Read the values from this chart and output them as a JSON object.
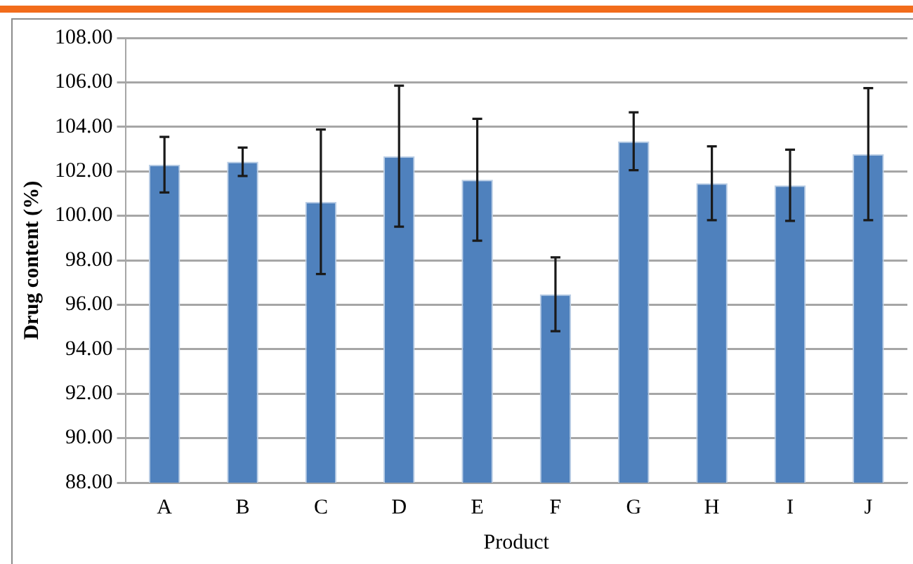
{
  "chart_data": {
    "type": "bar",
    "xlabel": "Product",
    "ylabel": "Drug content (%)",
    "categories": [
      "A",
      "B",
      "C",
      "D",
      "E",
      "F",
      "G",
      "H",
      "I",
      "J"
    ],
    "values": [
      102.3,
      102.43,
      100.63,
      102.68,
      101.62,
      96.47,
      103.35,
      101.46,
      101.37,
      102.77
    ],
    "errors": [
      1.25,
      0.64,
      3.25,
      3.17,
      2.74,
      1.66,
      1.3,
      1.66,
      1.6,
      2.97
    ],
    "color": "#4f81bd",
    "ylim": [
      88,
      108
    ],
    "yticks": [
      {
        "value": 88,
        "label": "88.00"
      },
      {
        "value": 90,
        "label": "90.00"
      },
      {
        "value": 92,
        "label": "92.00"
      },
      {
        "value": 94,
        "label": "94.00"
      },
      {
        "value": 96,
        "label": "96.00"
      },
      {
        "value": 98,
        "label": "98.00"
      },
      {
        "value": 100,
        "label": "100.00"
      },
      {
        "value": 102,
        "label": "102.00"
      },
      {
        "value": 104,
        "label": "104.00"
      },
      {
        "value": 106,
        "label": "106.00"
      },
      {
        "value": 108,
        "label": "108.00"
      }
    ],
    "grid": "y"
  }
}
